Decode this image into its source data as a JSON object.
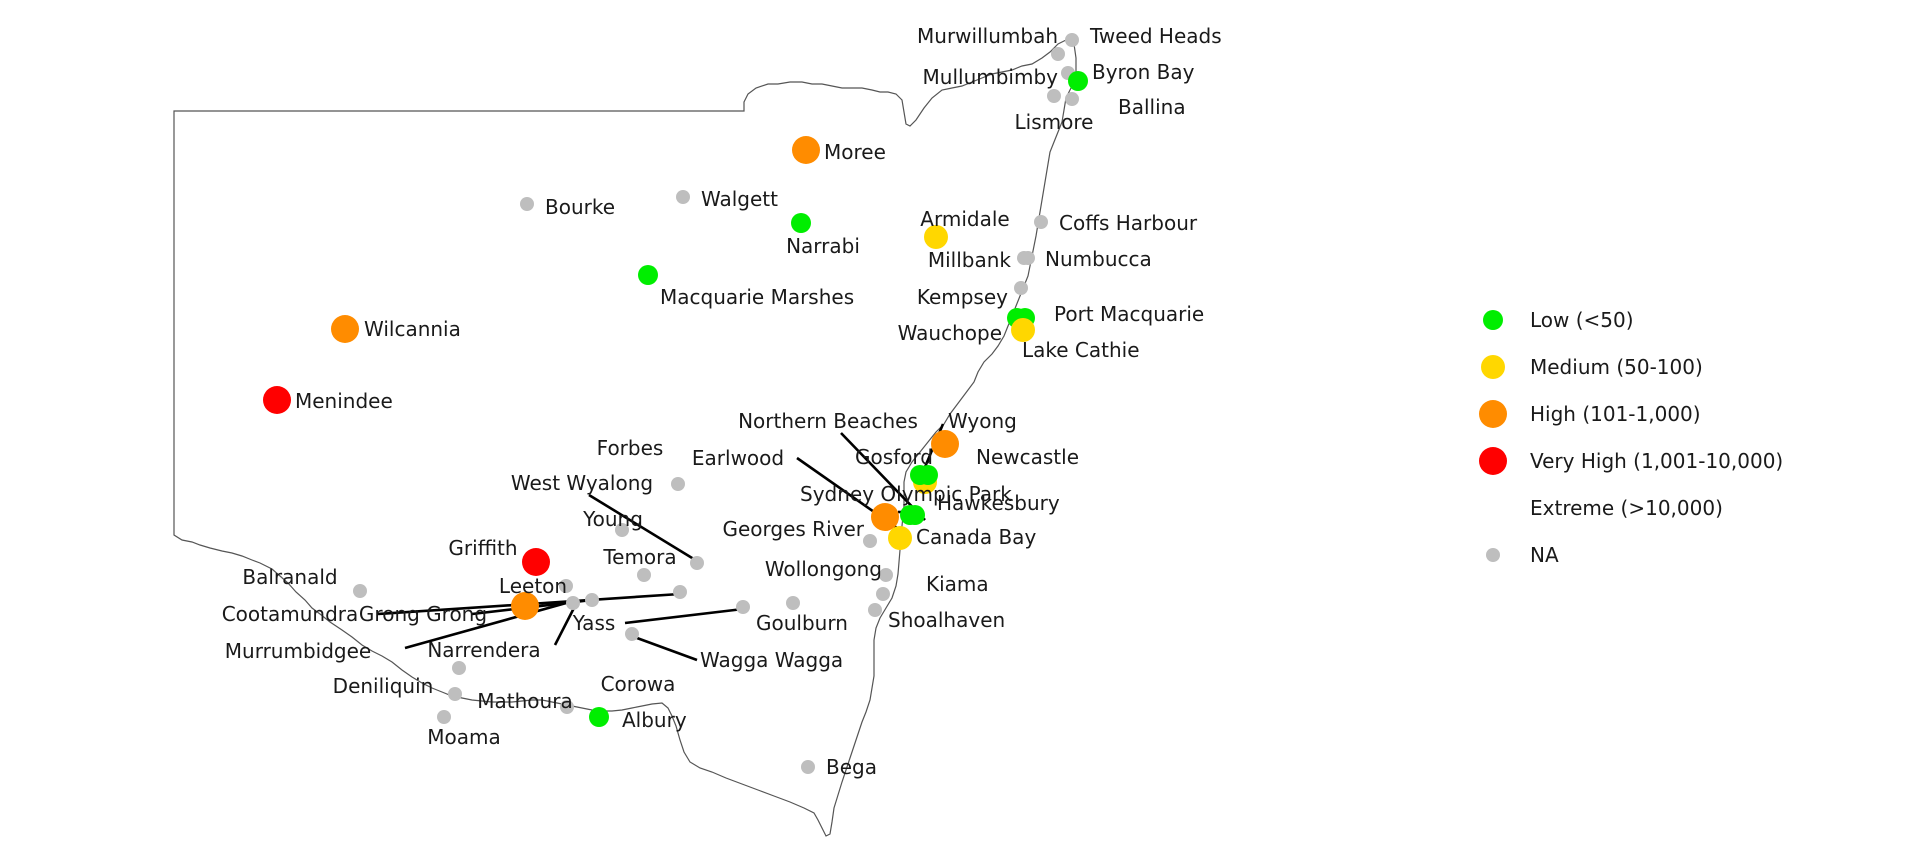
{
  "legend": {
    "items": [
      {
        "label": "Low (<50)",
        "color": "#00ee00",
        "show_dot": true
      },
      {
        "label": "Medium (50-100)",
        "color": "#ffd700",
        "show_dot": true
      },
      {
        "label": "High (101-1,000)",
        "color": "#ff8c00",
        "show_dot": true
      },
      {
        "label": "Very High (1,001-10,000)",
        "color": "#ff0000",
        "show_dot": true
      },
      {
        "label": "Extreme (>10,000)",
        "color": "#ffffff",
        "show_dot": false
      },
      {
        "label": "NA",
        "color": "#bebebe",
        "show_dot": true
      }
    ]
  },
  "locations": [
    {
      "name": "Murwillumbah",
      "category": "NA"
    },
    {
      "name": "Tweed Heads",
      "category": "NA"
    },
    {
      "name": "Mullumbimby",
      "category": "NA"
    },
    {
      "name": "Byron Bay",
      "category": "Low"
    },
    {
      "name": "Lismore",
      "category": "NA"
    },
    {
      "name": "Ballina",
      "category": "NA"
    },
    {
      "name": "Moree",
      "category": "High"
    },
    {
      "name": "Bourke",
      "category": "NA"
    },
    {
      "name": "Walgett",
      "category": "NA"
    },
    {
      "name": "Narrabi",
      "category": "Low"
    },
    {
      "name": "Armidale",
      "category": "Medium"
    },
    {
      "name": "Coffs Harbour",
      "category": "NA"
    },
    {
      "name": "Millbank",
      "category": "NA"
    },
    {
      "name": "Numbucca",
      "category": "NA"
    },
    {
      "name": "Macquarie Marshes",
      "category": "Low"
    },
    {
      "name": "Kempsey",
      "category": "NA"
    },
    {
      "name": "Port Macquarie",
      "category": "Low"
    },
    {
      "name": "Wauchope",
      "category": "Low"
    },
    {
      "name": "Lake Cathie",
      "category": "Medium"
    },
    {
      "name": "Wilcannia",
      "category": "High"
    },
    {
      "name": "Menindee",
      "category": "Very High"
    },
    {
      "name": "Northern Beaches",
      "category": "Medium"
    },
    {
      "name": "Wyong",
      "category": "Low"
    },
    {
      "name": "Newcastle",
      "category": "High"
    },
    {
      "name": "Earlwood",
      "category": "High"
    },
    {
      "name": "Gosford",
      "category": "Low"
    },
    {
      "name": "Forbes",
      "category": "NA"
    },
    {
      "name": "West Wyalong",
      "category": "NA"
    },
    {
      "name": "Sydney Olympic Park",
      "category": "Low"
    },
    {
      "name": "Hawkesbury",
      "category": "Low"
    },
    {
      "name": "Young",
      "category": "NA"
    },
    {
      "name": "Georges River",
      "category": "NA"
    },
    {
      "name": "Canada Bay",
      "category": "Medium"
    },
    {
      "name": "Griffith",
      "category": "Very High"
    },
    {
      "name": "Temora",
      "category": "NA"
    },
    {
      "name": "Balranald",
      "category": "NA"
    },
    {
      "name": "Wollongong",
      "category": "NA"
    },
    {
      "name": "Leeton",
      "category": "NA"
    },
    {
      "name": "Kiama",
      "category": "NA"
    },
    {
      "name": "Cootamundra",
      "category": "NA"
    },
    {
      "name": "Grong Grong",
      "category": "NA"
    },
    {
      "name": "Goulburn",
      "category": "NA"
    },
    {
      "name": "Shoalhaven",
      "category": "NA"
    },
    {
      "name": "Yass",
      "category": "NA"
    },
    {
      "name": "Murrumbidgee",
      "category": "High"
    },
    {
      "name": "Narrendera",
      "category": "NA"
    },
    {
      "name": "Wagga Wagga",
      "category": "NA"
    },
    {
      "name": "Corowa",
      "category": "NA"
    },
    {
      "name": "Deniliquin",
      "category": "NA"
    },
    {
      "name": "Mathoura",
      "category": "NA"
    },
    {
      "name": "Albury",
      "category": "Low"
    },
    {
      "name": "Moama",
      "category": "NA"
    },
    {
      "name": "Bega",
      "category": "NA"
    }
  ]
}
